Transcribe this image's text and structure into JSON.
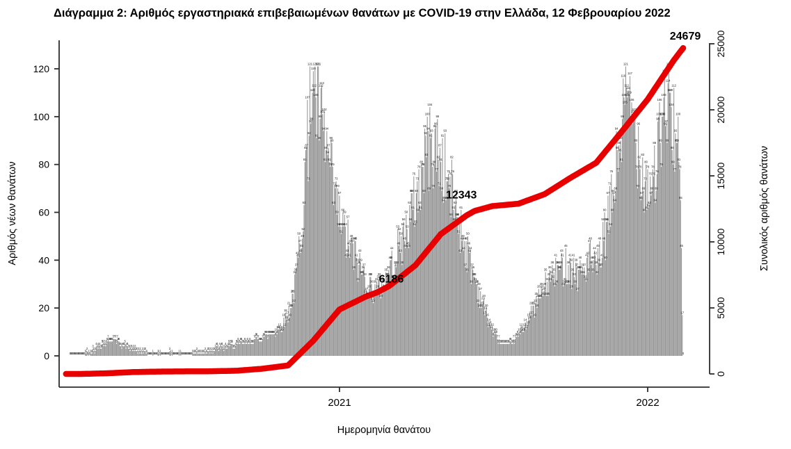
{
  "title": "Διάγραμμα 2: Αριθμός εργαστηριακά επιβεβαιωμένων θανάτων με COVID-19 στην Ελλάδα, 12 Φεβρουαρίου 2022",
  "colors": {
    "bar": "#999999",
    "bar_label": "#111111",
    "axis": "#2b2b2b",
    "cumulative_line": "#e80000",
    "annotation": "#e80000",
    "title_text": "#000000"
  },
  "chart_data": {
    "type": "bar+line",
    "title": "Διάγραμμα 2: Αριθμός εργαστηριακά επιβεβαιωμένων θανάτων με COVID-19 στην Ελλάδα, 12 Φεβρουαρίου 2022",
    "x_axis": {
      "label": "Ημερομηνία θανάτου",
      "ticks": [
        {
          "label": "2021",
          "date": "2021-01-01"
        },
        {
          "label": "2022",
          "date": "2022-01-01"
        }
      ],
      "range": [
        "2020-02-17",
        "2022-02-12"
      ]
    },
    "left_axis": {
      "label": "Αριθμός νέων θανάτων",
      "ticks": [
        0,
        20,
        40,
        60,
        80,
        100,
        120
      ],
      "range": [
        0,
        130
      ]
    },
    "right_axis": {
      "label": "Συνολικός αριθμός θανάτων",
      "ticks": [
        0,
        5000,
        10000,
        15000,
        20000,
        25000
      ],
      "range": [
        0,
        26000
      ]
    },
    "bar_series": {
      "name": "daily-deaths",
      "axis": "left",
      "weekly_values": [
        [
          "2020-02-17",
          0
        ],
        [
          "2020-02-24",
          0
        ],
        [
          "2020-03-02",
          0
        ],
        [
          "2020-03-09",
          1
        ],
        [
          "2020-03-16",
          2
        ],
        [
          "2020-03-23",
          4
        ],
        [
          "2020-03-30",
          5
        ],
        [
          "2020-04-06",
          7
        ],
        [
          "2020-04-13",
          6
        ],
        [
          "2020-04-20",
          4
        ],
        [
          "2020-04-27",
          3
        ],
        [
          "2020-05-04",
          2
        ],
        [
          "2020-05-11",
          1
        ],
        [
          "2020-05-18",
          1
        ],
        [
          "2020-05-25",
          0
        ],
        [
          "2020-06-01",
          1
        ],
        [
          "2020-06-08",
          0
        ],
        [
          "2020-06-15",
          1
        ],
        [
          "2020-06-22",
          0
        ],
        [
          "2020-06-29",
          1
        ],
        [
          "2020-07-06",
          0
        ],
        [
          "2020-07-13",
          1
        ],
        [
          "2020-07-20",
          1
        ],
        [
          "2020-07-27",
          2
        ],
        [
          "2020-08-03",
          2
        ],
        [
          "2020-08-10",
          3
        ],
        [
          "2020-08-17",
          3
        ],
        [
          "2020-08-24",
          4
        ],
        [
          "2020-08-31",
          4
        ],
        [
          "2020-09-07",
          5
        ],
        [
          "2020-09-14",
          5
        ],
        [
          "2020-09-21",
          6
        ],
        [
          "2020-09-28",
          7
        ],
        [
          "2020-10-05",
          8
        ],
        [
          "2020-10-12",
          9
        ],
        [
          "2020-10-19",
          10
        ],
        [
          "2020-10-26",
          13
        ],
        [
          "2020-11-02",
          18
        ],
        [
          "2020-11-09",
          28
        ],
        [
          "2020-11-16",
          50
        ],
        [
          "2020-11-23",
          85
        ],
        [
          "2020-11-30",
          112
        ],
        [
          "2020-12-07",
          102
        ],
        [
          "2020-12-14",
          90
        ],
        [
          "2020-12-21",
          77
        ],
        [
          "2020-12-28",
          63
        ],
        [
          "2021-01-04",
          53
        ],
        [
          "2021-01-11",
          47
        ],
        [
          "2021-01-18",
          42
        ],
        [
          "2021-01-25",
          37
        ],
        [
          "2021-02-01",
          32
        ],
        [
          "2021-02-08",
          28
        ],
        [
          "2021-02-15",
          27
        ],
        [
          "2021-02-22",
          30
        ],
        [
          "2021-03-01",
          35
        ],
        [
          "2021-03-08",
          41
        ],
        [
          "2021-03-15",
          47
        ],
        [
          "2021-03-22",
          53
        ],
        [
          "2021-03-29",
          61
        ],
        [
          "2021-04-05",
          70
        ],
        [
          "2021-04-12",
          80
        ],
        [
          "2021-04-19",
          88
        ],
        [
          "2021-04-26",
          86
        ],
        [
          "2021-05-03",
          79
        ],
        [
          "2021-05-10",
          72
        ],
        [
          "2021-05-17",
          64
        ],
        [
          "2021-05-24",
          54
        ],
        [
          "2021-05-31",
          45
        ],
        [
          "2021-06-07",
          36
        ],
        [
          "2021-06-14",
          28
        ],
        [
          "2021-06-21",
          20
        ],
        [
          "2021-06-28",
          13
        ],
        [
          "2021-07-05",
          8
        ],
        [
          "2021-07-12",
          5
        ],
        [
          "2021-07-19",
          4
        ],
        [
          "2021-07-26",
          6
        ],
        [
          "2021-08-02",
          9
        ],
        [
          "2021-08-09",
          13
        ],
        [
          "2021-08-16",
          17
        ],
        [
          "2021-08-23",
          22
        ],
        [
          "2021-08-30",
          27
        ],
        [
          "2021-09-06",
          31
        ],
        [
          "2021-09-13",
          34
        ],
        [
          "2021-09-20",
          36
        ],
        [
          "2021-09-27",
          38
        ],
        [
          "2021-10-04",
          36
        ],
        [
          "2021-10-11",
          34
        ],
        [
          "2021-10-18",
          36
        ],
        [
          "2021-10-25",
          40
        ],
        [
          "2021-11-01",
          35
        ],
        [
          "2021-11-08",
          45
        ],
        [
          "2021-11-15",
          55
        ],
        [
          "2021-11-22",
          70
        ],
        [
          "2021-11-29",
          90
        ],
        [
          "2021-12-06",
          105
        ],
        [
          "2021-12-13",
          100
        ],
        [
          "2021-12-20",
          90
        ],
        [
          "2021-12-27",
          76
        ],
        [
          "2022-01-03",
          70
        ],
        [
          "2022-01-10",
          78
        ],
        [
          "2022-01-17",
          92
        ],
        [
          "2022-01-24",
          104
        ],
        [
          "2022-01-31",
          100
        ],
        [
          "2022-02-07",
          80
        ],
        [
          "2022-02-12",
          40
        ]
      ],
      "peak_overrides": [
        [
          "2020-11-27",
          121
        ],
        [
          "2020-12-01",
          119
        ],
        [
          "2020-11-30",
          110
        ],
        [
          "2020-12-02",
          112
        ],
        [
          "2021-04-15",
          100
        ],
        [
          "2021-04-13",
          92
        ],
        [
          "2021-04-20",
          93
        ],
        [
          "2021-12-07",
          112
        ],
        [
          "2021-12-09",
          111
        ],
        [
          "2021-12-10",
          109
        ],
        [
          "2022-01-25",
          114
        ],
        [
          "2022-01-27",
          110
        ],
        [
          "2022-01-28",
          110
        ]
      ],
      "tail_overrides": [
        [
          "2022-02-10",
          45
        ],
        [
          "2022-02-11",
          17
        ],
        [
          "2022-02-12",
          0
        ]
      ]
    },
    "line_series": {
      "name": "cumulative-deaths",
      "axis": "right",
      "points": [
        [
          "2020-02-17",
          0
        ],
        [
          "2020-03-01",
          0
        ],
        [
          "2020-04-01",
          50
        ],
        [
          "2020-05-01",
          140
        ],
        [
          "2020-06-01",
          180
        ],
        [
          "2020-07-01",
          192
        ],
        [
          "2020-08-01",
          203
        ],
        [
          "2020-09-01",
          243
        ],
        [
          "2020-10-01",
          391
        ],
        [
          "2020-11-01",
          642
        ],
        [
          "2020-12-01",
          2517
        ],
        [
          "2021-01-01",
          4881
        ],
        [
          "2021-02-01",
          5851
        ],
        [
          "2021-02-15",
          6186
        ],
        [
          "2021-03-01",
          6664
        ],
        [
          "2021-04-01",
          8232
        ],
        [
          "2021-05-01",
          10587
        ],
        [
          "2021-06-01",
          12024
        ],
        [
          "2021-06-10",
          12343
        ],
        [
          "2021-07-01",
          12710
        ],
        [
          "2021-08-01",
          12890
        ],
        [
          "2021-09-01",
          13615
        ],
        [
          "2021-10-01",
          14828
        ],
        [
          "2021-11-01",
          15990
        ],
        [
          "2021-12-01",
          18325
        ],
        [
          "2022-01-01",
          20790
        ],
        [
          "2022-02-01",
          23760
        ],
        [
          "2022-02-12",
          24679
        ]
      ]
    },
    "annotations": [
      {
        "label": "6186",
        "value": 6186,
        "date": "2021-02-15"
      },
      {
        "label": "12343",
        "value": 12343,
        "date": "2021-06-10"
      },
      {
        "label": "24679",
        "value": 24679,
        "date": "2022-02-12"
      }
    ]
  }
}
